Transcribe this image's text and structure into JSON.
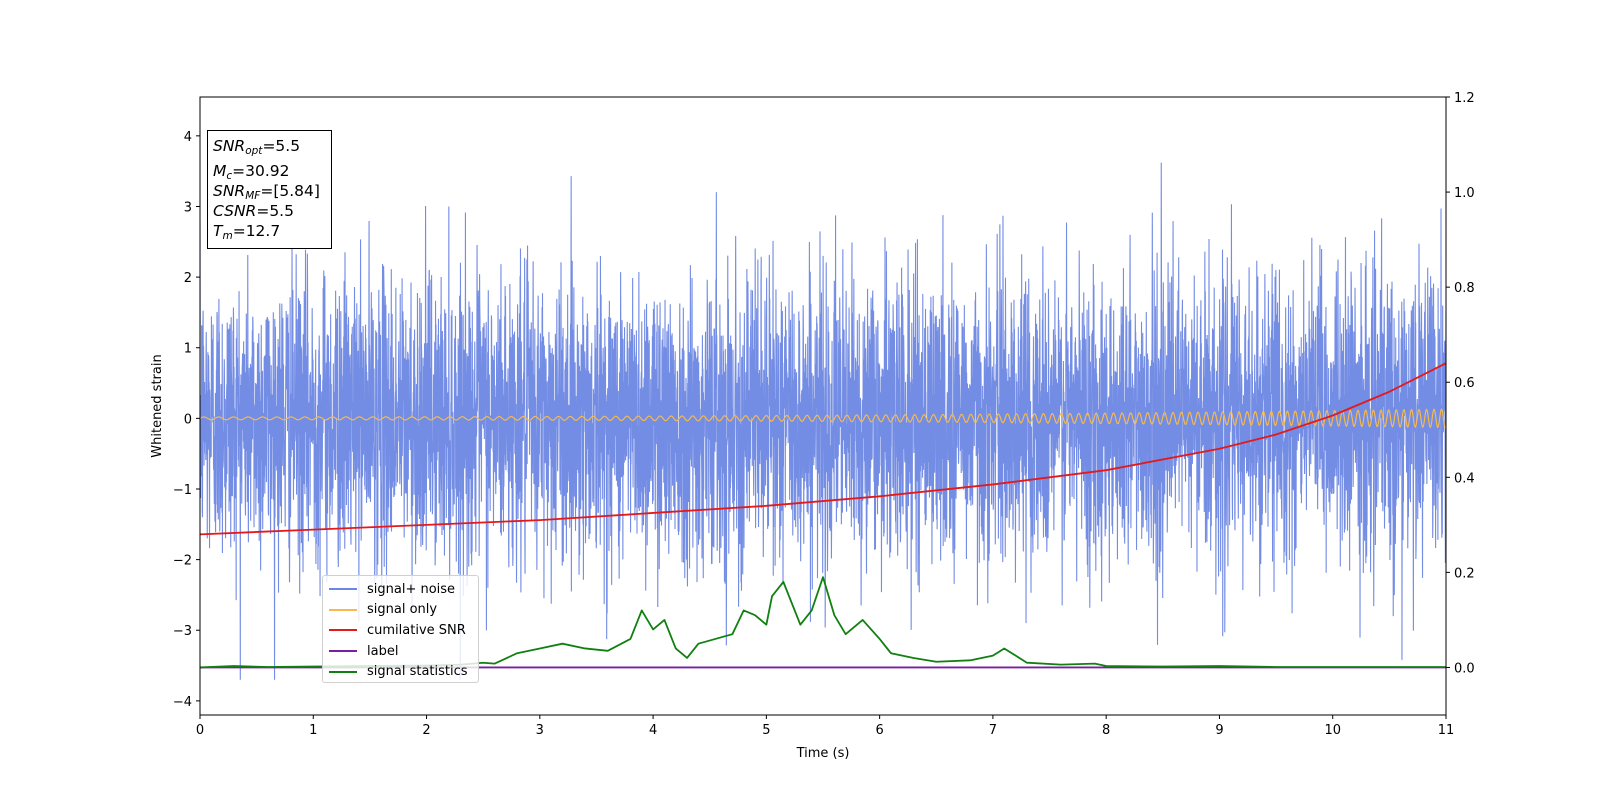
{
  "stats": {
    "snr_opt_value": "=5.5",
    "mc_value": "=30.92",
    "snr_mf_value": "=[5.84]",
    "csnr_value": "=5.5",
    "tm_value": "=12.7"
  },
  "legend": [
    {
      "label": "signal+ noise",
      "color": "#6b86e3"
    },
    {
      "label": "signal only",
      "color": "#f5b94f"
    },
    {
      "label": "cumilative SNR",
      "color": "#e31a1c"
    },
    {
      "label": "label",
      "color": "#7a1fa2"
    },
    {
      "label": "signal statistics",
      "color": "#118011"
    }
  ],
  "chart_data": {
    "type": "line",
    "xlabel": "Time (s)",
    "ylabel": "Whitened strain",
    "xlim": [
      0,
      11
    ],
    "ylim": [
      -4.2,
      4.55
    ],
    "y2lim": [
      -0.1,
      1.2
    ],
    "xticks": [
      "0",
      "1",
      "2",
      "3",
      "4",
      "5",
      "6",
      "7",
      "8",
      "9",
      "10",
      "11"
    ],
    "yticks": [
      "−4",
      "−3",
      "−2",
      "−1",
      "0",
      "1",
      "2",
      "3",
      "4"
    ],
    "y2ticks": [
      "0.0",
      "0.2",
      "0.4",
      "0.6",
      "0.8",
      "1.0",
      "1.2"
    ],
    "grid": false,
    "legend_position": "lower-left",
    "series": [
      {
        "name": "signal+ noise",
        "axis": "left",
        "kind": "noise",
        "amplitude": 1.0,
        "peak_range": [
          -3.7,
          4.15
        ]
      },
      {
        "name": "signal only",
        "axis": "left",
        "kind": "chirp",
        "amplitude_start": 0.02,
        "amplitude_end": 0.13
      },
      {
        "name": "cumilative SNR",
        "axis": "right",
        "x": [
          0,
          1,
          2,
          3,
          4,
          5,
          6,
          7,
          8,
          9,
          9.5,
          10,
          10.5,
          11
        ],
        "y": [
          0.28,
          0.29,
          0.3,
          0.31,
          0.325,
          0.34,
          0.36,
          0.385,
          0.415,
          0.46,
          0.49,
          0.53,
          0.58,
          0.64
        ]
      },
      {
        "name": "label",
        "axis": "right",
        "x": [
          0,
          11
        ],
        "y": [
          0.0,
          0.0
        ]
      },
      {
        "name": "signal statistics",
        "axis": "right",
        "x": [
          0,
          0.3,
          0.6,
          1.0,
          1.5,
          2.0,
          2.3,
          2.5,
          2.6,
          2.8,
          3.0,
          3.2,
          3.4,
          3.6,
          3.8,
          3.9,
          4.0,
          4.1,
          4.2,
          4.3,
          4.4,
          4.55,
          4.7,
          4.8,
          4.9,
          5.0,
          5.05,
          5.15,
          5.3,
          5.4,
          5.5,
          5.6,
          5.7,
          5.85,
          6.0,
          6.1,
          6.3,
          6.5,
          6.8,
          7.0,
          7.1,
          7.3,
          7.6,
          7.9,
          8.0,
          8.5,
          9.0,
          9.5,
          10.0,
          11.0
        ],
        "y": [
          0.0,
          0.003,
          0.001,
          0.002,
          0.003,
          0.004,
          0.006,
          0.01,
          0.008,
          0.03,
          0.04,
          0.05,
          0.04,
          0.035,
          0.06,
          0.12,
          0.08,
          0.1,
          0.04,
          0.02,
          0.05,
          0.06,
          0.07,
          0.12,
          0.11,
          0.09,
          0.15,
          0.18,
          0.09,
          0.12,
          0.19,
          0.11,
          0.07,
          0.1,
          0.06,
          0.03,
          0.02,
          0.012,
          0.015,
          0.025,
          0.04,
          0.01,
          0.006,
          0.008,
          0.003,
          0.002,
          0.003,
          0.001,
          0.001,
          0.001
        ]
      }
    ]
  }
}
